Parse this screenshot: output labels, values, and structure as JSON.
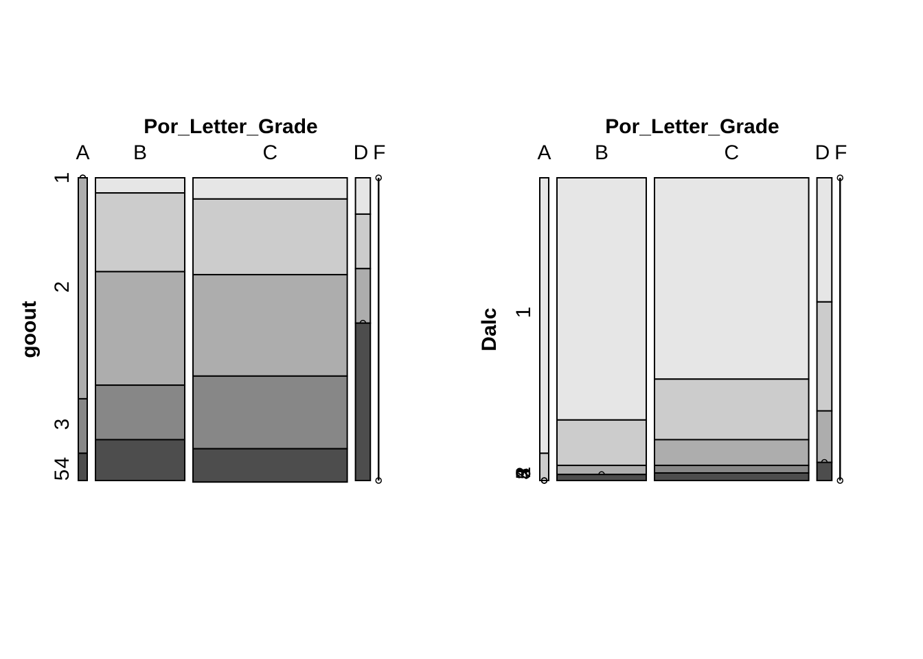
{
  "colors": {
    "level_shades": [
      "#e6e6e6",
      "#cccccc",
      "#adadad",
      "#878787",
      "#4d4d4d"
    ],
    "outline": "#000000",
    "background": "#ffffff"
  },
  "chart_data": [
    {
      "type": "mosaic",
      "title": "Por_Letter_Grade",
      "xlabel": "Por_Letter_Grade",
      "ylabel": "goout",
      "categories": [
        "A",
        "B",
        "C",
        "D",
        "F"
      ],
      "column_widths": [
        0.033,
        0.33,
        0.57,
        0.055,
        0.0
      ],
      "y_levels": [
        "1",
        "2",
        "3",
        "4",
        "5"
      ],
      "y_tick_labels": [
        {
          "label": "1",
          "level": "1"
        },
        {
          "label": "2",
          "level": "2"
        },
        {
          "label": "3",
          "level": "3"
        },
        {
          "label": "5",
          "level": "5"
        },
        {
          "label": "4",
          "level": "4"
        }
      ],
      "series": [
        {
          "name": "1",
          "values": [
            0.0,
            0.05,
            0.07,
            0.12,
            0.0
          ]
        },
        {
          "name": "2",
          "values": [
            0.0,
            0.26,
            0.25,
            0.18,
            0.0
          ]
        },
        {
          "name": "3",
          "values": [
            0.73,
            0.375,
            0.335,
            0.18,
            0.0
          ]
        },
        {
          "name": "4",
          "values": [
            0.18,
            0.18,
            0.24,
            0.0,
            0.0
          ]
        },
        {
          "name": "5",
          "values": [
            0.09,
            0.135,
            0.11,
            0.52,
            0.0
          ]
        }
      ]
    },
    {
      "type": "mosaic",
      "title": "Por_Letter_Grade",
      "xlabel": "Por_Letter_Grade",
      "ylabel": "Dalc",
      "categories": [
        "A",
        "B",
        "C",
        "D",
        "F"
      ],
      "column_widths": [
        0.033,
        0.33,
        0.57,
        0.055,
        0.0
      ],
      "y_levels": [
        "1",
        "2",
        "3",
        "4",
        "5"
      ],
      "y_tick_labels": [
        {
          "label": "1",
          "level": "1"
        },
        {
          "label": "2",
          "level": "2"
        },
        {
          "label": "3",
          "level": "3"
        },
        {
          "label": "4",
          "level": "4"
        },
        {
          "label": "5",
          "level": "5"
        }
      ],
      "series": [
        {
          "name": "1",
          "values": [
            0.91,
            0.8,
            0.665,
            0.41,
            0.0
          ]
        },
        {
          "name": "2",
          "values": [
            0.09,
            0.15,
            0.2,
            0.36,
            0.0
          ]
        },
        {
          "name": "3",
          "values": [
            0.0,
            0.03,
            0.085,
            0.17,
            0.0
          ]
        },
        {
          "name": "4",
          "values": [
            0.0,
            0.0,
            0.025,
            0.0,
            0.0
          ]
        },
        {
          "name": "5",
          "values": [
            0.0,
            0.02,
            0.025,
            0.06,
            0.0
          ]
        }
      ]
    }
  ]
}
